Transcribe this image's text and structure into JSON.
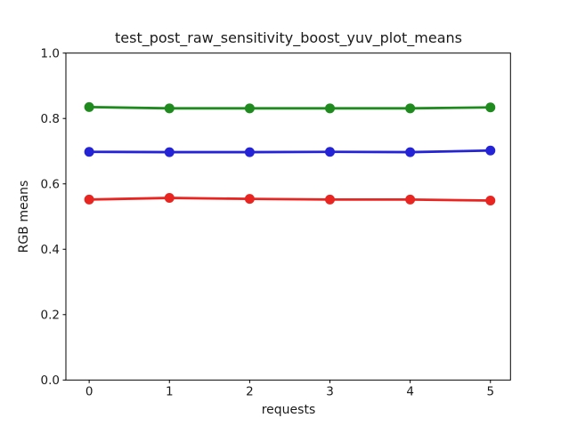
{
  "figure": {
    "background": "#ffffff",
    "text_color": "#1a1a1a",
    "spine_color": "#000000"
  },
  "chart_data": {
    "type": "line",
    "title": "test_post_raw_sensitivity_boost_yuv_plot_means",
    "xlabel": "requests",
    "ylabel": "RGB means",
    "x": [
      0,
      1,
      2,
      3,
      4,
      5
    ],
    "series": [
      {
        "name": "red",
        "color": "#e82521",
        "values": [
          0.552,
          0.557,
          0.554,
          0.552,
          0.552,
          0.549
        ]
      },
      {
        "name": "green",
        "color": "#1f8b1f",
        "values": [
          0.835,
          0.831,
          0.831,
          0.831,
          0.831,
          0.834
        ]
      },
      {
        "name": "blue",
        "color": "#2424d6",
        "values": [
          0.698,
          0.697,
          0.697,
          0.698,
          0.697,
          0.702
        ]
      }
    ],
    "xlim": [
      -0.29,
      5.25
    ],
    "ylim": [
      0,
      1
    ],
    "xticks": [
      0,
      1,
      2,
      3,
      4,
      5
    ],
    "xtick_labels": [
      "0",
      "1",
      "2",
      "3",
      "4",
      "5"
    ],
    "yticks": [
      0.0,
      0.2,
      0.4,
      0.6,
      0.8,
      1.0
    ],
    "ytick_labels": [
      "0.0",
      "0.2",
      "0.4",
      "0.6",
      "0.8",
      "1.0"
    ],
    "grid": false,
    "legend": null,
    "marker": "o",
    "line_width": 2.8,
    "marker_radius": 5.5
  }
}
